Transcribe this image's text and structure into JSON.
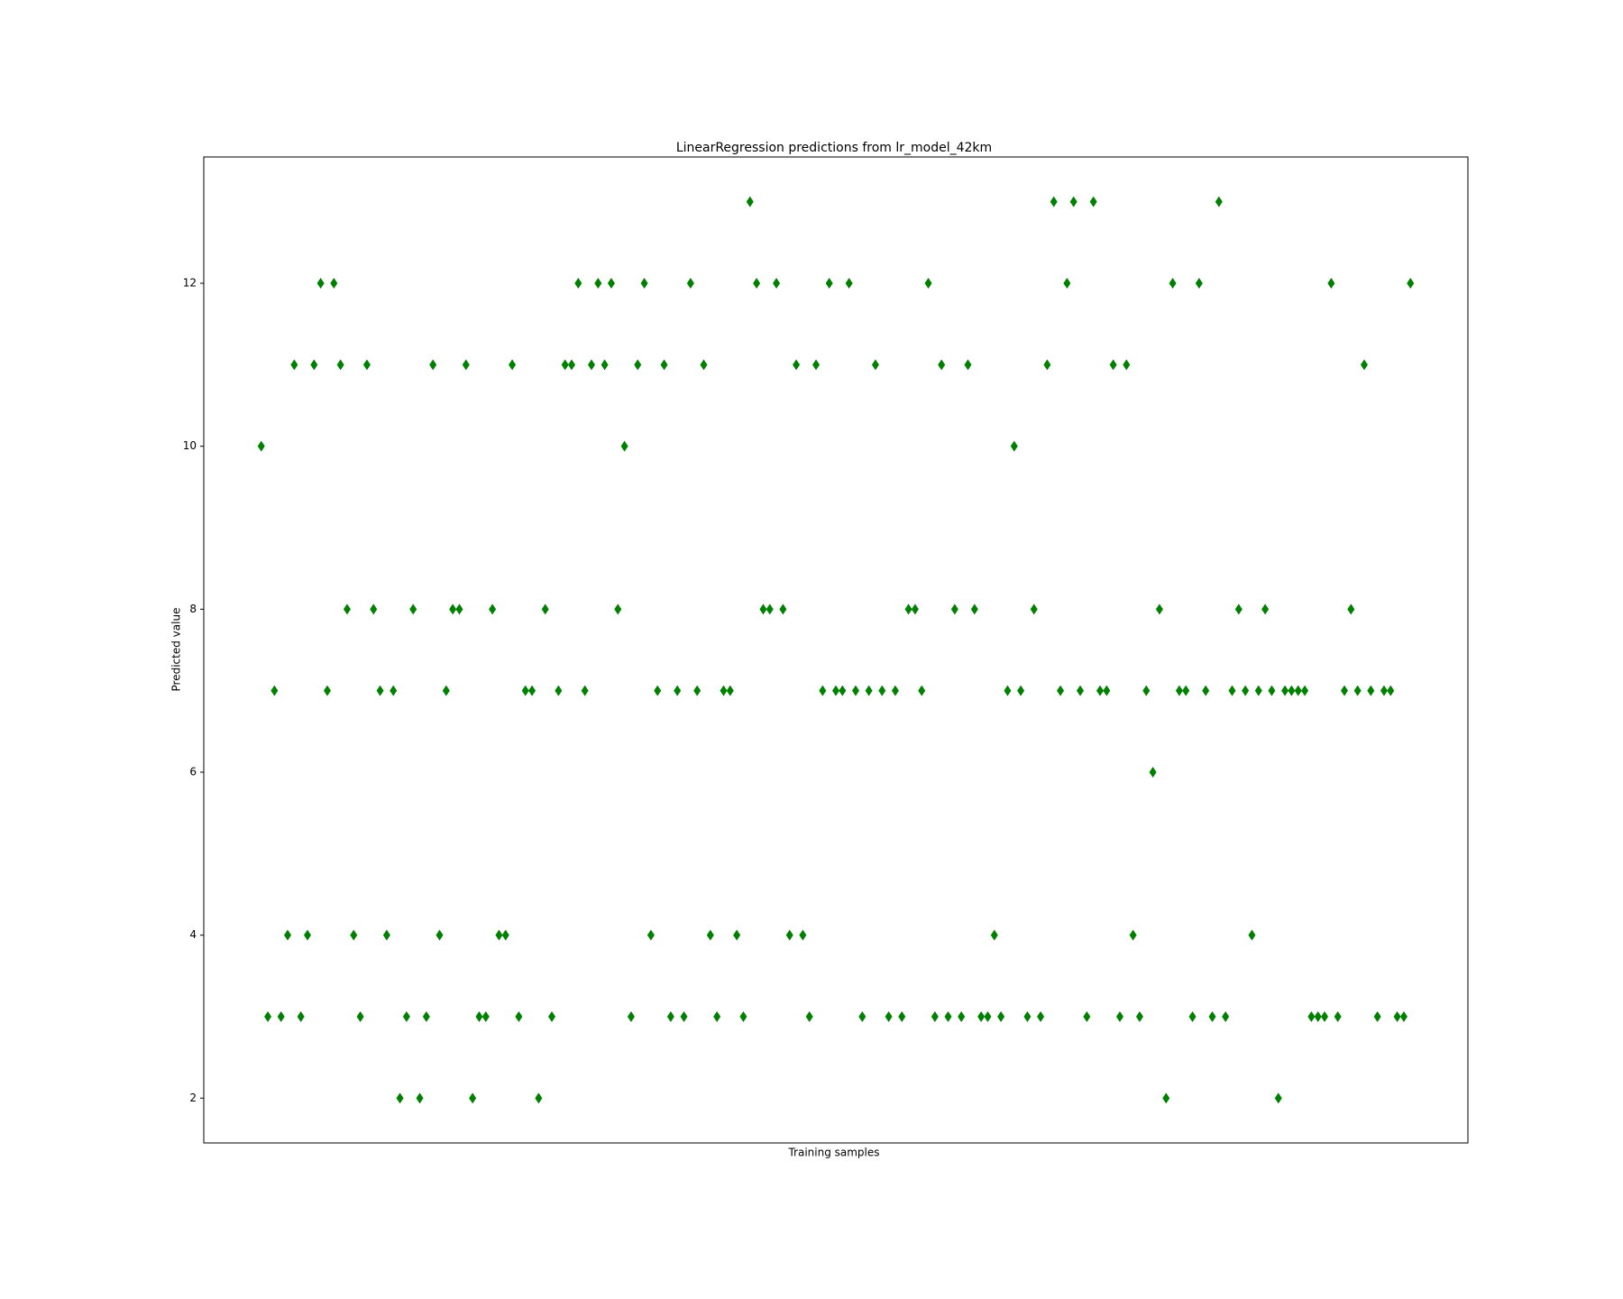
{
  "chart_data": {
    "type": "scatter",
    "title": "LinearRegression predictions from lr_model_42km",
    "x_label": "Training samples",
    "y_label": "Predicted value",
    "marker": "diamond",
    "color": "#008000",
    "values": [
      10,
      3,
      7,
      3,
      4,
      11,
      3,
      4,
      11,
      12,
      7,
      12,
      11,
      8,
      4,
      3,
      11,
      8,
      7,
      4,
      7,
      2,
      3,
      8,
      2,
      3,
      11,
      4,
      7,
      8,
      8,
      11,
      2,
      3,
      3,
      8,
      4,
      4,
      11,
      3,
      7,
      7,
      2,
      8,
      3,
      7,
      11,
      11,
      12,
      7,
      11,
      12,
      11,
      12,
      8,
      10,
      3,
      11,
      12,
      4,
      7,
      11,
      3,
      7,
      3,
      12,
      7,
      11,
      4,
      3,
      7,
      7,
      4,
      3,
      13,
      12,
      8,
      8,
      12,
      8,
      4,
      11,
      4,
      3,
      11,
      7,
      12,
      7,
      7,
      12,
      7,
      3,
      7,
      11,
      7,
      3,
      7,
      3,
      8,
      8,
      7,
      12,
      3,
      11,
      3,
      8,
      3,
      11,
      8,
      3,
      3,
      4,
      3,
      7,
      10,
      7,
      3,
      8,
      3,
      11,
      13,
      7,
      12,
      13,
      7,
      3,
      13,
      7,
      7,
      11,
      3,
      11,
      4,
      3,
      7,
      6,
      8,
      2,
      12,
      7,
      7,
      3,
      12,
      7,
      3,
      13,
      3,
      7,
      8,
      7,
      4,
      7,
      8,
      7,
      2,
      7,
      7,
      7,
      7,
      3,
      3,
      3,
      12,
      3,
      7,
      8,
      7,
      11,
      7,
      3,
      7,
      7,
      3,
      3,
      12
    ],
    "xlim": [
      -8.7,
      182.7
    ],
    "ylim": [
      1.45,
      13.55
    ],
    "yticks": [
      2,
      4,
      6,
      8,
      10,
      12
    ]
  }
}
